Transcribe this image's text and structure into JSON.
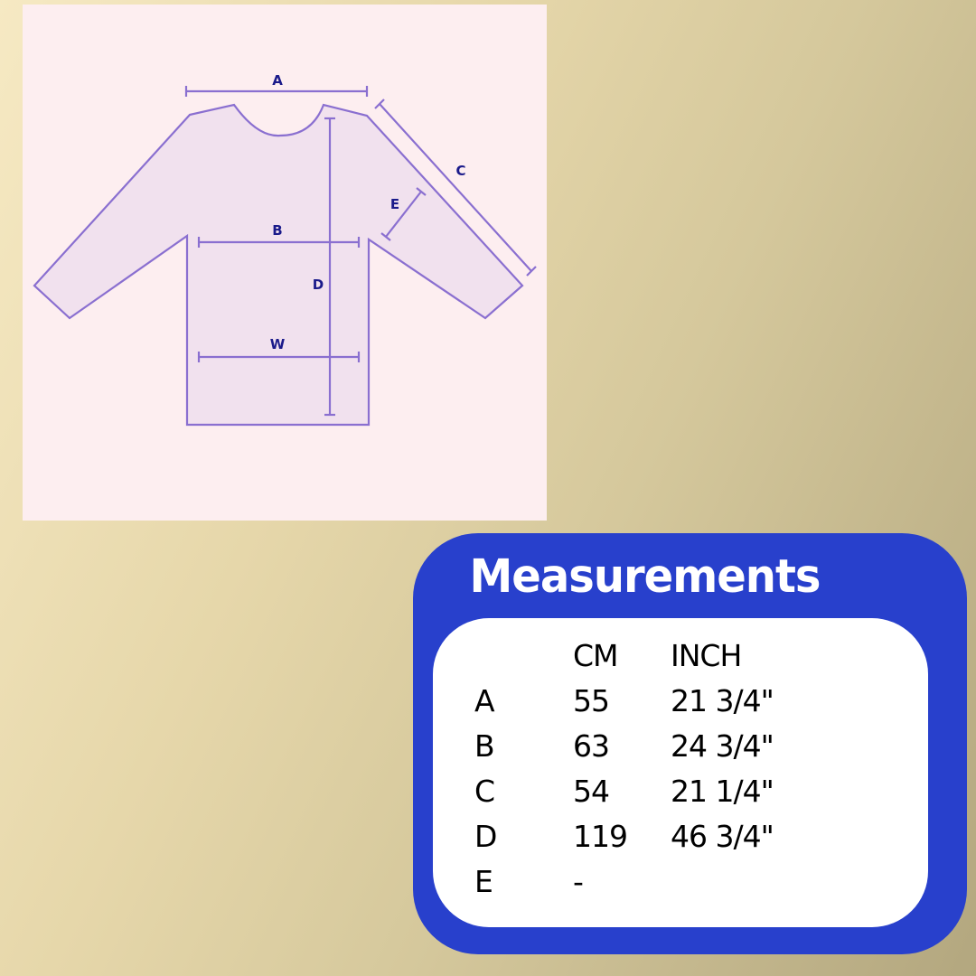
{
  "diagram": {
    "labels": [
      "A",
      "B",
      "C",
      "D",
      "E",
      "W"
    ],
    "colors": {
      "outline": "#8a6fd0",
      "fill": "#f1e1ee",
      "label": "#1a1a8a",
      "panel": "#fdeef0"
    }
  },
  "measurements": {
    "title": "Measurements",
    "headers": [
      "",
      "CM",
      "INCH"
    ],
    "rows": [
      {
        "label": "A",
        "cm": "55",
        "inch": "21 3/4\""
      },
      {
        "label": "B",
        "cm": "63",
        "inch": "24 3/4\""
      },
      {
        "label": "C",
        "cm": "54",
        "inch": "21 1/4\""
      },
      {
        "label": "D",
        "cm": "119",
        "inch": "46 3/4\""
      },
      {
        "label": "E",
        "cm": "-",
        "inch": ""
      }
    ],
    "colors": {
      "card": "#2840cc",
      "inner": "#ffffff"
    }
  }
}
